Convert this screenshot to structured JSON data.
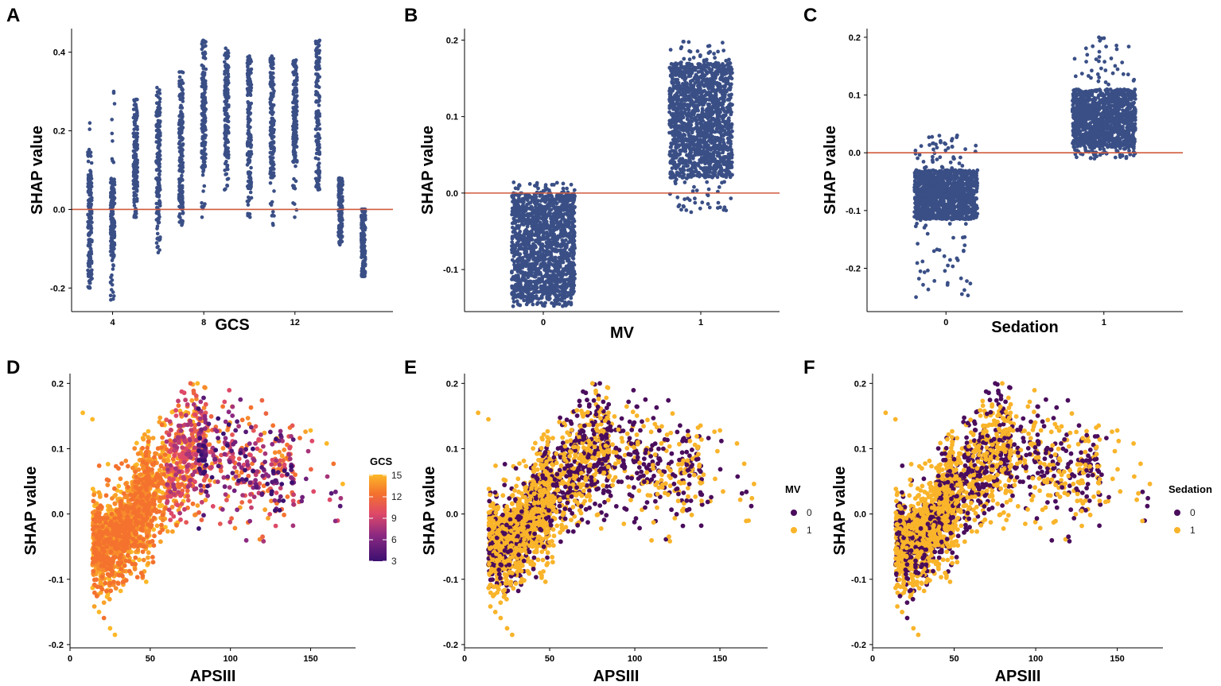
{
  "colors": {
    "navy": "#3a4f86",
    "ref_line": "#d05a3c",
    "purple": "#4a0c5c",
    "amber": "#f9b42a",
    "gradient": [
      "#3b0f70",
      "#8c2981",
      "#de4968",
      "#f4722e",
      "#fcb827"
    ]
  },
  "chart_data": [
    {
      "panel": "A",
      "type": "scatter",
      "xlabel": "GCS",
      "ylabel": "SHAP value",
      "xlim": [
        2.2,
        16.3
      ],
      "ylim": [
        -0.26,
        0.46
      ],
      "xticks": [
        4,
        8,
        12
      ],
      "yticks": [
        -0.2,
        0.0,
        0.2,
        0.4
      ],
      "ytick_labels": [
        "-0.2",
        "0.0",
        "0.2",
        "0.4"
      ],
      "reference_line_y": 0,
      "groups": [
        {
          "x": 3,
          "min": -0.2,
          "max": 0.22,
          "dense_min": -0.17,
          "dense_max": 0.09
        },
        {
          "x": 4,
          "min": -0.23,
          "max": 0.3,
          "dense_min": -0.12,
          "dense_max": 0.08
        },
        {
          "x": 5,
          "min": -0.02,
          "max": 0.28,
          "dense_min": 0.02,
          "dense_max": 0.24
        },
        {
          "x": 6,
          "min": -0.11,
          "max": 0.31,
          "dense_min": -0.04,
          "dense_max": 0.26
        },
        {
          "x": 7,
          "min": -0.04,
          "max": 0.35,
          "dense_min": 0.0,
          "dense_max": 0.31
        },
        {
          "x": 8,
          "min": -0.02,
          "max": 0.43,
          "dense_min": 0.1,
          "dense_max": 0.39
        },
        {
          "x": 9,
          "min": 0.05,
          "max": 0.41,
          "dense_min": 0.12,
          "dense_max": 0.38
        },
        {
          "x": 10,
          "min": -0.02,
          "max": 0.39,
          "dense_min": 0.05,
          "dense_max": 0.36
        },
        {
          "x": 11,
          "min": -0.04,
          "max": 0.39,
          "dense_min": 0.08,
          "dense_max": 0.36
        },
        {
          "x": 12,
          "min": -0.02,
          "max": 0.38,
          "dense_min": 0.12,
          "dense_max": 0.35
        },
        {
          "x": 13,
          "min": 0.05,
          "max": 0.43,
          "dense_min": 0.07,
          "dense_max": 0.42
        },
        {
          "x": 14,
          "min": -0.09,
          "max": 0.08,
          "dense_min": -0.07,
          "dense_max": 0.07
        },
        {
          "x": 15,
          "min": -0.17,
          "max": 0.0,
          "dense_min": -0.17,
          "dense_max": 0.0
        }
      ]
    },
    {
      "panel": "B",
      "type": "scatter",
      "xlabel": "MV",
      "ylabel": "SHAP value",
      "xlim": [
        -0.5,
        1.5
      ],
      "ylim": [
        -0.155,
        0.215
      ],
      "xticks": [
        0,
        1
      ],
      "yticks": [
        -0.1,
        0.0,
        0.1,
        0.2
      ],
      "ytick_labels": [
        "-0.1",
        "0.0",
        "0.1",
        "0.2"
      ],
      "reference_line_y": 0,
      "groups": [
        {
          "x": 0,
          "min": -0.148,
          "max": 0.014,
          "dense_min": -0.14,
          "dense_max": 0.0
        },
        {
          "x": 1,
          "min": -0.025,
          "max": 0.198,
          "dense_min": 0.02,
          "dense_max": 0.17
        }
      ]
    },
    {
      "panel": "C",
      "type": "scatter",
      "xlabel": "Sedation",
      "ylabel": "SHAP value",
      "xlim": [
        -0.5,
        1.5
      ],
      "ylim": [
        -0.275,
        0.215
      ],
      "xticks": [
        0,
        1
      ],
      "yticks": [
        -0.2,
        -0.1,
        0.0,
        0.1,
        0.2
      ],
      "ytick_labels": [
        "-0.2",
        "-0.1",
        "0.0",
        "0.1",
        "0.2"
      ],
      "reference_line_y": 0,
      "groups": [
        {
          "x": 0,
          "min": -0.25,
          "max": 0.03,
          "dense_min": -0.115,
          "dense_max": -0.03
        },
        {
          "x": 1,
          "min": -0.01,
          "max": 0.2,
          "dense_min": 0.01,
          "dense_max": 0.11
        }
      ]
    },
    {
      "panel": "D",
      "type": "scatter",
      "xlabel": "APSIII",
      "ylabel": "SHAP value",
      "xlim": [
        0,
        178
      ],
      "ylim": [
        -0.205,
        0.215
      ],
      "xticks": [
        0,
        50,
        100,
        150
      ],
      "yticks": [
        -0.2,
        -0.1,
        0.0,
        0.1,
        0.2
      ],
      "ytick_labels": [
        "-0.2",
        "-0.1",
        "0.0",
        "0.1",
        "0.2"
      ],
      "color_by": "GCS",
      "legend": {
        "title": "GCS",
        "type": "continuous",
        "ticks": [
          "15",
          "12",
          "9",
          "6",
          "3"
        ]
      }
    },
    {
      "panel": "E",
      "type": "scatter",
      "xlabel": "APSIII",
      "ylabel": "SHAP value",
      "xlim": [
        0,
        178
      ],
      "ylim": [
        -0.205,
        0.215
      ],
      "xticks": [
        0,
        50,
        100,
        150
      ],
      "yticks": [
        -0.2,
        -0.1,
        0.0,
        0.1,
        0.2
      ],
      "ytick_labels": [
        "-0.2",
        "-0.1",
        "0.0",
        "0.1",
        "0.2"
      ],
      "color_by": "MV",
      "legend": {
        "title": "MV",
        "type": "discrete",
        "entries": [
          {
            "label": "0",
            "color": "#4a0c5c"
          },
          {
            "label": "1",
            "color": "#f9b42a"
          }
        ]
      }
    },
    {
      "panel": "F",
      "type": "scatter",
      "xlabel": "APSIII",
      "ylabel": "SHAP value",
      "xlim": [
        0,
        178
      ],
      "ylim": [
        -0.205,
        0.215
      ],
      "xticks": [
        0,
        50,
        100,
        150
      ],
      "yticks": [
        -0.2,
        -0.1,
        0.0,
        0.1,
        0.2
      ],
      "ytick_labels": [
        "-0.2",
        "-0.1",
        "0.0",
        "0.1",
        "0.2"
      ],
      "color_by": "Sedation",
      "legend": {
        "title": "Sedation",
        "type": "discrete",
        "entries": [
          {
            "label": "0",
            "color": "#4a0c5c"
          },
          {
            "label": "1",
            "color": "#f9b42a"
          }
        ]
      }
    }
  ]
}
